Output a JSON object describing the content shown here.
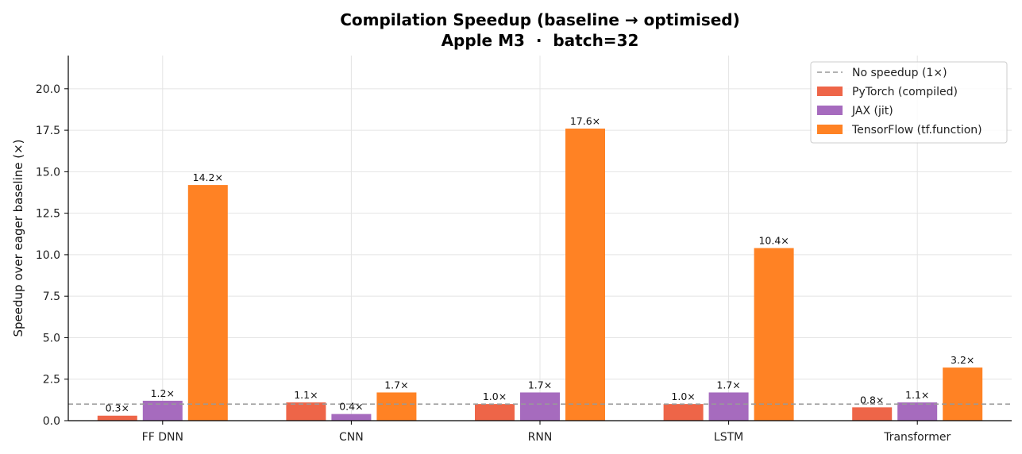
{
  "chart_data": {
    "type": "bar",
    "title": "Compilation Speedup (baseline → optimised)",
    "subtitle": "Apple M3  ·  batch=32",
    "xlabel": "",
    "ylabel": "Speedup over eager baseline (×)",
    "ylim": [
      0,
      22
    ],
    "yticks": [
      0.0,
      2.5,
      5.0,
      7.5,
      10.0,
      12.5,
      15.0,
      17.5,
      20.0
    ],
    "ytick_labels": [
      "0.0",
      "2.5",
      "5.0",
      "7.5",
      "10.0",
      "12.5",
      "15.0",
      "17.5",
      "20.0"
    ],
    "grid": true,
    "legend_position": "top-right",
    "categories": [
      "FF DNN",
      "CNN",
      "RNN",
      "LSTM",
      "Transformer"
    ],
    "reference_line": {
      "value": 1.0,
      "label": "No speedup (1×)",
      "color": "#999999",
      "style": "dashed"
    },
    "series": [
      {
        "name": "PyTorch (compiled)",
        "color": "#ee6548",
        "values": [
          0.3,
          1.1,
          1.0,
          1.0,
          0.8
        ],
        "labels": [
          "0.3×",
          "1.1×",
          "1.0×",
          "1.0×",
          "0.8×"
        ]
      },
      {
        "name": "JAX (jit)",
        "color": "#a66bbe",
        "values": [
          1.2,
          0.4,
          1.7,
          1.7,
          1.1
        ],
        "labels": [
          "1.2×",
          "0.4×",
          "1.7×",
          "1.7×",
          "1.1×"
        ]
      },
      {
        "name": "TensorFlow (tf.function)",
        "color": "#ff8224",
        "values": [
          14.2,
          1.7,
          17.6,
          10.4,
          3.2
        ],
        "labels": [
          "14.2×",
          "1.7×",
          "17.6×",
          "10.4×",
          "3.2×"
        ]
      }
    ]
  }
}
